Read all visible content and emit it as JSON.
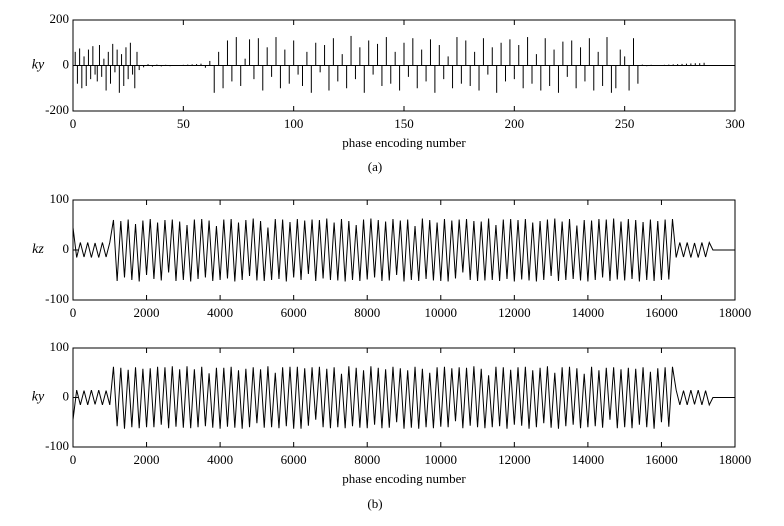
{
  "chart_data": [
    {
      "type": "stem",
      "ylabel": "ky",
      "xlabel": "phase encoding number",
      "color": "#000000",
      "xlim": [
        0,
        300
      ],
      "ylim": [
        -200,
        200
      ],
      "xticks": [
        0,
        50,
        100,
        150,
        200,
        250,
        300
      ],
      "yticks": [
        -200,
        0,
        200
      ],
      "x": [
        1,
        2,
        3,
        4,
        5,
        6,
        7,
        8,
        9,
        10,
        11,
        12,
        13,
        14,
        15,
        16,
        17,
        18,
        19,
        20,
        21,
        22,
        23,
        24,
        25,
        26,
        27,
        28,
        29,
        30,
        32,
        34,
        36,
        38,
        40,
        42,
        44,
        46,
        48,
        50,
        52,
        54,
        56,
        58,
        60,
        62,
        64,
        66,
        68,
        70,
        72,
        74,
        76,
        78,
        80,
        82,
        84,
        86,
        88,
        90,
        92,
        94,
        96,
        98,
        100,
        102,
        104,
        106,
        108,
        110,
        112,
        114,
        116,
        118,
        120,
        122,
        124,
        126,
        128,
        130,
        132,
        134,
        136,
        138,
        140,
        142,
        144,
        146,
        148,
        150,
        152,
        154,
        156,
        158,
        160,
        162,
        164,
        166,
        168,
        170,
        172,
        174,
        176,
        178,
        180,
        182,
        184,
        186,
        188,
        190,
        192,
        194,
        196,
        198,
        200,
        202,
        204,
        206,
        208,
        210,
        212,
        214,
        216,
        218,
        220,
        222,
        224,
        226,
        228,
        230,
        232,
        234,
        236,
        238,
        240,
        242,
        244,
        246,
        248,
        250,
        252,
        254,
        256,
        258,
        260,
        262,
        264,
        266,
        268,
        270,
        272,
        274,
        276,
        278,
        280,
        282,
        284,
        286
      ],
      "values": [
        60,
        -80,
        75,
        -100,
        40,
        -90,
        70,
        -60,
        85,
        -40,
        -70,
        90,
        -50,
        30,
        -110,
        60,
        -80,
        95,
        -30,
        70,
        -120,
        50,
        -90,
        80,
        -60,
        100,
        -40,
        -100,
        60,
        -20,
        -8,
        6,
        -5,
        4,
        -4,
        3,
        -3,
        2,
        2,
        3,
        4,
        5,
        6,
        8,
        -10,
        20,
        -120,
        60,
        -100,
        110,
        -70,
        125,
        -90,
        30,
        115,
        -60,
        120,
        -110,
        80,
        -50,
        125,
        -100,
        70,
        -80,
        110,
        -40,
        -90,
        60,
        -120,
        100,
        -30,
        90,
        -110,
        120,
        -70,
        50,
        -100,
        130,
        -60,
        80,
        -120,
        110,
        -40,
        95,
        -90,
        125,
        -80,
        60,
        -110,
        100,
        -50,
        120,
        -100,
        70,
        -70,
        115,
        -120,
        90,
        -60,
        40,
        -100,
        125,
        -80,
        110,
        -90,
        60,
        -110,
        120,
        -40,
        80,
        -120,
        100,
        -70,
        115,
        -60,
        90,
        -100,
        125,
        -80,
        50,
        -110,
        120,
        -90,
        70,
        -120,
        105,
        -50,
        110,
        -100,
        80,
        -70,
        120,
        -110,
        60,
        -90,
        125,
        -120,
        -100,
        70,
        40,
        -110,
        120,
        -80,
        4,
        -3,
        3,
        -2,
        2,
        3,
        4,
        5,
        6,
        7,
        8,
        9,
        10,
        10,
        12
      ]
    },
    {
      "type": "line",
      "ylabel": "kz",
      "color": "#000000",
      "xlim": [
        0,
        18000
      ],
      "ylim": [
        -100,
        100
      ],
      "xticks": [
        0,
        2000,
        4000,
        6000,
        8000,
        10000,
        12000,
        14000,
        16000,
        18000
      ],
      "yticks": [
        -100,
        0,
        100
      ],
      "x": [
        0,
        100,
        200,
        300,
        400,
        500,
        600,
        700,
        800,
        900,
        1000,
        1100,
        1200,
        1300,
        1400,
        1500,
        1600,
        1700,
        1800,
        1900,
        2000,
        2100,
        2200,
        2300,
        2400,
        2500,
        2600,
        2700,
        2800,
        2900,
        3000,
        3100,
        3200,
        3300,
        3400,
        3500,
        3600,
        3700,
        3800,
        3900,
        4000,
        4100,
        4200,
        4300,
        4400,
        4500,
        4600,
        4700,
        4800,
        4900,
        5000,
        5100,
        5200,
        5300,
        5400,
        5500,
        5600,
        5700,
        5800,
        5900,
        6000,
        6100,
        6200,
        6300,
        6400,
        6500,
        6600,
        6700,
        6800,
        6900,
        7000,
        7100,
        7200,
        7300,
        7400,
        7500,
        7600,
        7700,
        7800,
        7900,
        8000,
        8100,
        8200,
        8300,
        8400,
        8500,
        8600,
        8700,
        8800,
        8900,
        9000,
        9100,
        9200,
        9300,
        9400,
        9500,
        9600,
        9700,
        9800,
        9900,
        10000,
        10100,
        10200,
        10300,
        10400,
        10500,
        10600,
        10700,
        10800,
        10900,
        11000,
        11100,
        11200,
        11300,
        11400,
        11500,
        11600,
        11700,
        11800,
        11900,
        12000,
        12100,
        12200,
        12300,
        12400,
        12500,
        12600,
        12700,
        12800,
        12900,
        13000,
        13100,
        13200,
        13300,
        13400,
        13500,
        13600,
        13700,
        13800,
        13900,
        14000,
        14100,
        14200,
        14300,
        14400,
        14500,
        14600,
        14700,
        14800,
        14900,
        15000,
        15100,
        15200,
        15300,
        15400,
        15500,
        15600,
        15700,
        15800,
        15900,
        16000,
        16100,
        16200,
        16300,
        16400,
        16500,
        16600,
        16700,
        16800,
        16900,
        17000,
        17100,
        17200,
        17300,
        17400,
        18000
      ],
      "values": [
        45,
        -15,
        15,
        -14,
        15,
        -15,
        14,
        -15,
        15,
        -14,
        15,
        60,
        -62,
        58,
        -55,
        61,
        -60,
        52,
        -63,
        59,
        -50,
        62,
        -58,
        55,
        -61,
        60,
        -45,
        61,
        -62,
        57,
        -60,
        50,
        -63,
        61,
        -58,
        62,
        -55,
        59,
        -62,
        48,
        -60,
        61,
        -57,
        62,
        -63,
        55,
        -60,
        60,
        -52,
        63,
        -61,
        58,
        -62,
        45,
        -60,
        62,
        -58,
        61,
        -63,
        56,
        -55,
        62,
        -60,
        59,
        -48,
        61,
        -62,
        60,
        -57,
        63,
        -60,
        55,
        -61,
        62,
        -63,
        58,
        -60,
        50,
        -62,
        61,
        -59,
        63,
        -55,
        60,
        -62,
        57,
        -61,
        62,
        -50,
        59,
        -63,
        61,
        -60,
        48,
        -62,
        63,
        -58,
        60,
        -61,
        55,
        -62,
        62,
        -63,
        59,
        -57,
        61,
        -45,
        62,
        -60,
        58,
        -62,
        57,
        -61,
        63,
        -60,
        50,
        -62,
        61,
        -58,
        62,
        -63,
        60,
        -59,
        62,
        -61,
        55,
        -63,
        58,
        -60,
        61,
        -52,
        63,
        -62,
        57,
        -60,
        62,
        -58,
        49,
        -61,
        60,
        -63,
        59,
        -60,
        62,
        -55,
        61,
        -62,
        63,
        -59,
        57,
        -61,
        62,
        -58,
        60,
        -63,
        56,
        -60,
        61,
        -62,
        58,
        -60,
        61,
        -59,
        62,
        -15,
        15,
        -14,
        15,
        -15,
        14,
        -15,
        15,
        -14,
        15,
        0,
        0
      ]
    },
    {
      "type": "line",
      "ylabel": "ky",
      "xlabel": "phase encoding number",
      "color": "#000000",
      "xlim": [
        0,
        18000
      ],
      "ylim": [
        -100,
        100
      ],
      "xticks": [
        0,
        2000,
        4000,
        6000,
        8000,
        10000,
        12000,
        14000,
        16000,
        18000
      ],
      "yticks": [
        -100,
        0,
        100
      ],
      "x": [
        0,
        100,
        200,
        300,
        400,
        500,
        600,
        700,
        800,
        900,
        1000,
        1100,
        1200,
        1300,
        1400,
        1500,
        1600,
        1700,
        1800,
        1900,
        2000,
        2100,
        2200,
        2300,
        2400,
        2500,
        2600,
        2700,
        2800,
        2900,
        3000,
        3100,
        3200,
        3300,
        3400,
        3500,
        3600,
        3700,
        3800,
        3900,
        4000,
        4100,
        4200,
        4300,
        4400,
        4500,
        4600,
        4700,
        4800,
        4900,
        5000,
        5100,
        5200,
        5300,
        5400,
        5500,
        5600,
        5700,
        5800,
        5900,
        6000,
        6100,
        6200,
        6300,
        6400,
        6500,
        6600,
        6700,
        6800,
        6900,
        7000,
        7100,
        7200,
        7300,
        7400,
        7500,
        7600,
        7700,
        7800,
        7900,
        8000,
        8100,
        8200,
        8300,
        8400,
        8500,
        8600,
        8700,
        8800,
        8900,
        9000,
        9100,
        9200,
        9300,
        9400,
        9500,
        9600,
        9700,
        9800,
        9900,
        10000,
        10100,
        10200,
        10300,
        10400,
        10500,
        10600,
        10700,
        10800,
        10900,
        11000,
        11100,
        11200,
        11300,
        11400,
        11500,
        11600,
        11700,
        11800,
        11900,
        12000,
        12100,
        12200,
        12300,
        12400,
        12500,
        12600,
        12700,
        12800,
        12900,
        13000,
        13100,
        13200,
        13300,
        13400,
        13500,
        13600,
        13700,
        13800,
        13900,
        14000,
        14100,
        14200,
        14300,
        14400,
        14500,
        14600,
        14700,
        14800,
        14900,
        15000,
        15100,
        15200,
        15300,
        15400,
        15500,
        15600,
        15700,
        15800,
        15900,
        16000,
        16100,
        16200,
        16300,
        16400,
        16500,
        16600,
        16700,
        16800,
        16900,
        17000,
        17100,
        17200,
        17300,
        17400,
        18000
      ],
      "values": [
        -45,
        15,
        -15,
        14,
        -15,
        15,
        -14,
        15,
        -15,
        14,
        -15,
        62,
        -58,
        60,
        -63,
        56,
        -60,
        61,
        -62,
        58,
        -60,
        59,
        -60,
        62,
        -55,
        61,
        -62,
        63,
        -59,
        57,
        -61,
        63,
        -62,
        57,
        -60,
        62,
        -58,
        49,
        -61,
        60,
        -63,
        60,
        -59,
        62,
        -61,
        55,
        -63,
        58,
        -60,
        61,
        -52,
        57,
        -61,
        63,
        -60,
        50,
        -62,
        61,
        -58,
        62,
        -63,
        62,
        -63,
        59,
        -57,
        61,
        -45,
        62,
        -60,
        58,
        -62,
        61,
        -60,
        48,
        -62,
        63,
        -58,
        60,
        -61,
        55,
        -62,
        63,
        -55,
        60,
        -62,
        57,
        -61,
        62,
        -50,
        59,
        -63,
        55,
        -61,
        62,
        -63,
        58,
        -60,
        50,
        -62,
        61,
        -59,
        62,
        -60,
        59,
        -48,
        61,
        -62,
        60,
        -57,
        63,
        -60,
        58,
        -62,
        45,
        -60,
        62,
        -58,
        61,
        -63,
        56,
        -55,
        61,
        -57,
        62,
        -63,
        55,
        -60,
        60,
        -52,
        63,
        -61,
        50,
        -63,
        61,
        -58,
        62,
        -55,
        59,
        -62,
        48,
        -60,
        62,
        -58,
        55,
        -61,
        60,
        -45,
        61,
        -62,
        57,
        -60,
        60,
        -62,
        58,
        -55,
        61,
        -60,
        52,
        -63,
        59,
        -50,
        61,
        -59,
        62,
        15,
        -15,
        14,
        -15,
        15,
        -14,
        15,
        -15,
        14,
        -15,
        0,
        0
      ]
    }
  ],
  "captions": [
    "(a)",
    "(b)"
  ]
}
